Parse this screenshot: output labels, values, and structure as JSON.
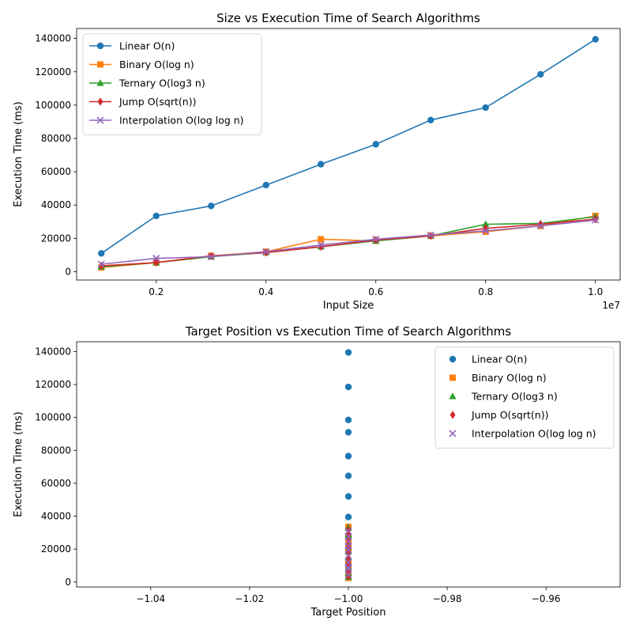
{
  "chart_data": [
    {
      "type": "line",
      "title": "Size vs Execution Time of Search Algorithms",
      "xlabel": "Input Size",
      "ylabel": "Execution Time (ms)",
      "x_offset_label": "1e7",
      "xlim": [
        550000,
        10450000
      ],
      "ylim": [
        -5000,
        146000
      ],
      "xticks": [
        2000000,
        4000000,
        6000000,
        8000000,
        10000000
      ],
      "xtick_labels": [
        "0.2",
        "0.4",
        "0.6",
        "0.8",
        "1.0"
      ],
      "yticks": [
        0,
        20000,
        40000,
        60000,
        80000,
        100000,
        120000,
        140000
      ],
      "ytick_labels": [
        "0",
        "20000",
        "40000",
        "60000",
        "80000",
        "100000",
        "120000",
        "140000"
      ],
      "legend_position": "upper-left",
      "grid": false,
      "x": [
        1000000,
        2000000,
        3000000,
        4000000,
        5000000,
        6000000,
        7000000,
        8000000,
        9000000,
        10000000
      ],
      "series": [
        {
          "name": "Linear O(n)",
          "color": "#1f77b4",
          "marker": "circle",
          "values": [
            11000,
            33500,
            39500,
            52000,
            64500,
            76500,
            91000,
            98500,
            118500,
            139500
          ]
        },
        {
          "name": "Binary O(log n)",
          "color": "#ff7f0e",
          "marker": "square",
          "values": [
            2500,
            5500,
            9500,
            12000,
            19500,
            18500,
            21500,
            24000,
            27500,
            33500
          ]
        },
        {
          "name": "Ternary O(log3 n)",
          "color": "#2ca02c",
          "marker": "triangle",
          "values": [
            3000,
            5500,
            9000,
            11500,
            15000,
            18500,
            21500,
            28500,
            29000,
            33000
          ]
        },
        {
          "name": "Jump O(sqrt(n))",
          "color": "#d62728",
          "marker": "diamond",
          "values": [
            3500,
            5500,
            9500,
            11500,
            15000,
            19000,
            21500,
            26000,
            28500,
            31500
          ]
        },
        {
          "name": "Interpolation O(log log n)",
          "color": "#9467bd",
          "marker": "x",
          "values": [
            4500,
            8000,
            9000,
            12000,
            16000,
            19500,
            22000,
            24500,
            27500,
            31000
          ]
        }
      ]
    },
    {
      "type": "scatter",
      "title": "Target Position vs Execution Time of Search Algorithms",
      "xlabel": "Target Position",
      "ylabel": "Execution Time (ms)",
      "xlim": [
        -1.055,
        -0.945
      ],
      "ylim": [
        -3000,
        146000
      ],
      "xticks": [
        -1.04,
        -1.02,
        -1.0,
        -0.98,
        -0.96
      ],
      "xtick_labels": [
        "−1.04",
        "−1.02",
        "−1.00",
        "−0.98",
        "−0.96"
      ],
      "yticks": [
        0,
        20000,
        40000,
        60000,
        80000,
        100000,
        120000,
        140000
      ],
      "ytick_labels": [
        "0",
        "20000",
        "40000",
        "60000",
        "80000",
        "100000",
        "120000",
        "140000"
      ],
      "legend_position": "upper-right",
      "grid": false,
      "x_value_all": -1.0,
      "series": [
        {
          "name": "Linear O(n)",
          "color": "#1f77b4",
          "marker": "circle",
          "values": [
            11000,
            33500,
            39500,
            52000,
            64500,
            76500,
            91000,
            98500,
            118500,
            139500
          ]
        },
        {
          "name": "Binary O(log n)",
          "color": "#ff7f0e",
          "marker": "square",
          "values": [
            2500,
            5500,
            9500,
            12000,
            19500,
            18500,
            21500,
            24000,
            27500,
            33500
          ]
        },
        {
          "name": "Ternary O(log3 n)",
          "color": "#2ca02c",
          "marker": "triangle",
          "values": [
            3000,
            5500,
            9000,
            11500,
            15000,
            18500,
            21500,
            28500,
            29000,
            33000
          ]
        },
        {
          "name": "Jump O(sqrt(n))",
          "color": "#d62728",
          "marker": "diamond",
          "values": [
            3500,
            5500,
            9500,
            11500,
            15000,
            19000,
            21500,
            26000,
            28500,
            31500
          ]
        },
        {
          "name": "Interpolation O(log log n)",
          "color": "#9467bd",
          "marker": "x",
          "values": [
            4500,
            8000,
            9000,
            12000,
            16000,
            19500,
            22000,
            24500,
            27500,
            31000
          ]
        }
      ]
    }
  ]
}
